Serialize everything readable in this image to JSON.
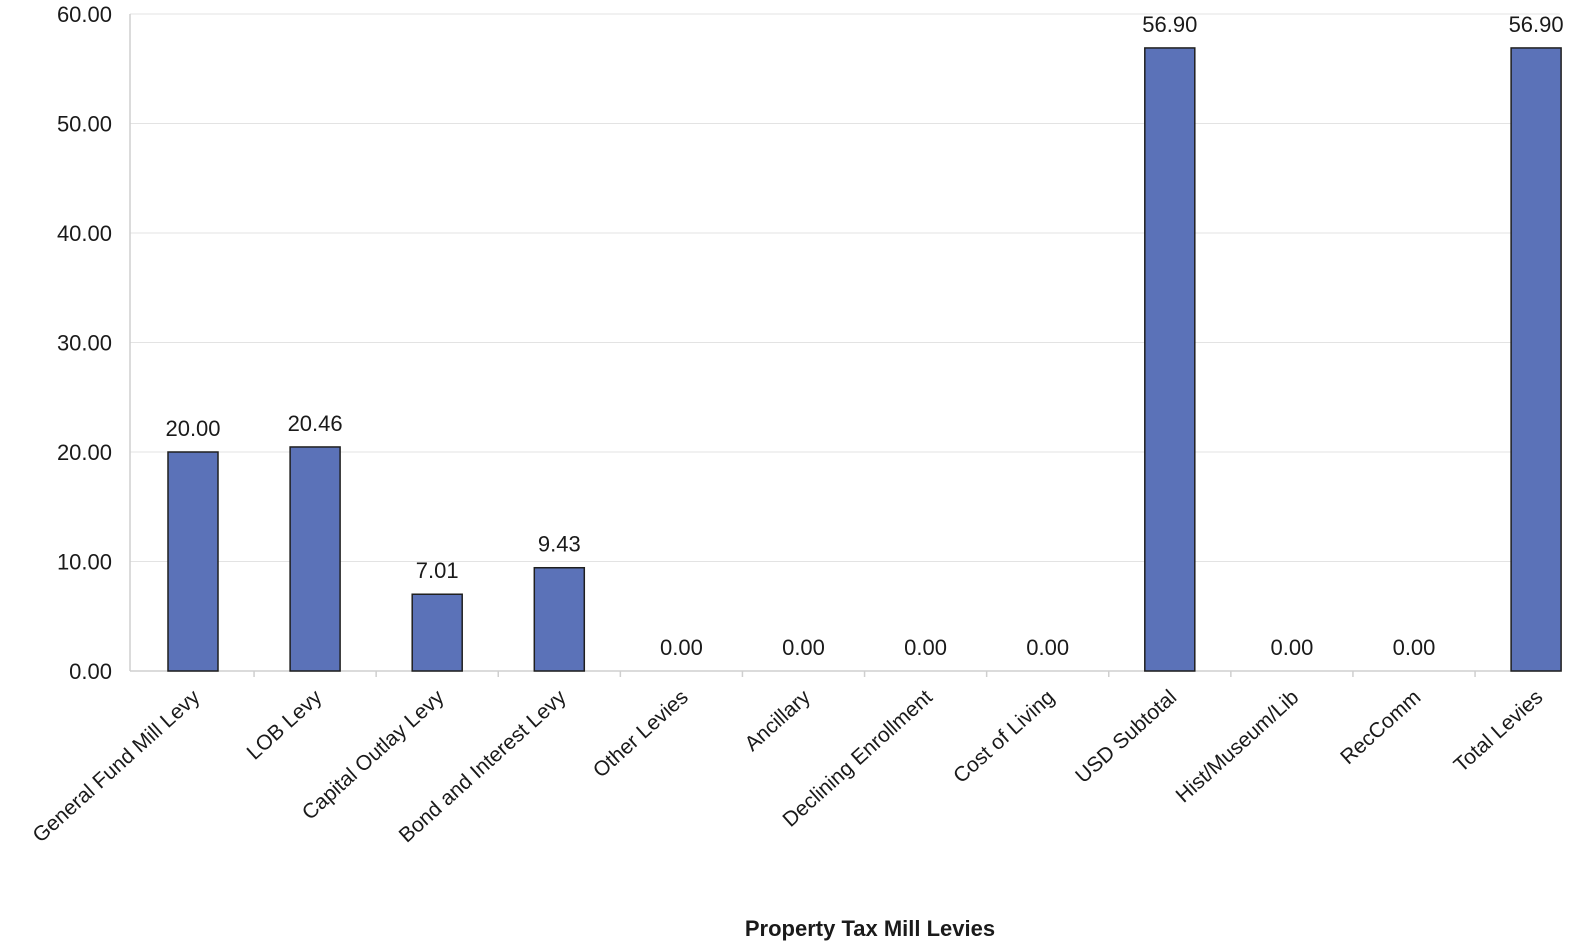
{
  "chart_data": {
    "type": "bar",
    "title": "",
    "xlabel": "Property Tax Mill Levies",
    "ylabel": "",
    "ylim": [
      0,
      60
    ],
    "yticks": [
      "0.00",
      "10.00",
      "20.00",
      "30.00",
      "40.00",
      "50.00",
      "60.00"
    ],
    "grid": true,
    "categories": [
      "General Fund Mill Levy",
      "LOB Levy",
      "Capital Outlay Levy",
      "Bond and Interest Levy",
      "Other Levies",
      "Ancillary",
      "Declining Enrollment",
      "Cost of Living",
      "USD Subtotal",
      "Hist/Museum/Lib",
      "RecComm",
      "Total Levies"
    ],
    "values": [
      20.0,
      20.46,
      7.01,
      9.43,
      0.0,
      0.0,
      0.0,
      0.0,
      56.9,
      0.0,
      0.0,
      56.9
    ],
    "value_labels": [
      "20.00",
      "20.46",
      "7.01",
      "9.43",
      "0.00",
      "0.00",
      "0.00",
      "0.00",
      "56.90",
      "0.00",
      "0.00",
      "56.90"
    ],
    "bar_color": "#5b72b8"
  }
}
